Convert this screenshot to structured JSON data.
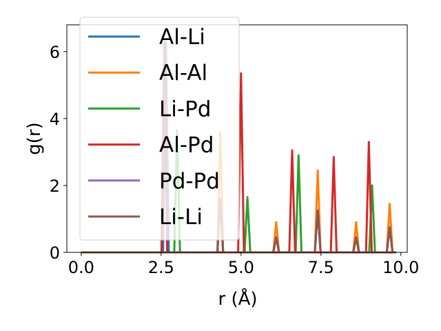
{
  "chart_data": {
    "type": "line",
    "xlabel": "r (Å)",
    "ylabel": "g(r)",
    "xlim": [
      -0.45,
      10.2
    ],
    "ylim": [
      0,
      6.8
    ],
    "x_ticks": [
      0.0,
      2.5,
      5.0,
      7.5,
      10.0
    ],
    "x_tick_labels": [
      "0.0",
      "2.5",
      "5.0",
      "7.5",
      "10.0"
    ],
    "y_ticks": [
      0,
      2,
      4,
      6
    ],
    "y_tick_labels": [
      "0",
      "2",
      "4",
      "6"
    ],
    "grid": false,
    "legend_position": "upper-left",
    "series": [
      {
        "name": "Al-Li",
        "color": "#1f77b4",
        "peaks": [
          [
            2.65,
            6.3
          ],
          [
            4.35,
            1.6
          ],
          [
            6.1,
            0.45
          ],
          [
            7.4,
            1.25
          ],
          [
            8.6,
            0.45
          ],
          [
            9.65,
            0.75
          ]
        ]
      },
      {
        "name": "Al-Al",
        "color": "#ff7f0e",
        "peaks": [
          [
            4.35,
            3.6
          ],
          [
            6.1,
            0.9
          ],
          [
            7.4,
            2.45
          ],
          [
            8.6,
            0.9
          ],
          [
            9.65,
            1.45
          ]
        ]
      },
      {
        "name": "Li-Pd",
        "color": "#2ca02c",
        "peaks": [
          [
            3.0,
            3.65
          ],
          [
            5.2,
            1.65
          ],
          [
            6.8,
            2.9
          ],
          [
            9.1,
            2.0
          ]
        ]
      },
      {
        "name": "Al-Pd",
        "color": "#d62728",
        "peaks": [
          [
            2.6,
            6.25
          ],
          [
            5.0,
            5.35
          ],
          [
            6.6,
            3.05
          ],
          [
            7.9,
            2.85
          ],
          [
            9.0,
            3.3
          ]
        ]
      },
      {
        "name": "Pd-Pd",
        "color": "#9467bd",
        "peaks": [
          [
            4.35,
            1.6
          ],
          [
            6.1,
            0.45
          ],
          [
            7.4,
            1.25
          ],
          [
            8.6,
            0.45
          ],
          [
            9.65,
            0.75
          ]
        ]
      },
      {
        "name": "Li-Li",
        "color": "#8c564b",
        "peaks": [
          [
            4.35,
            1.6
          ],
          [
            6.1,
            0.45
          ],
          [
            7.4,
            1.25
          ],
          [
            8.6,
            0.45
          ],
          [
            9.65,
            0.75
          ]
        ]
      }
    ],
    "x_range": [
      0.0,
      9.85
    ]
  }
}
